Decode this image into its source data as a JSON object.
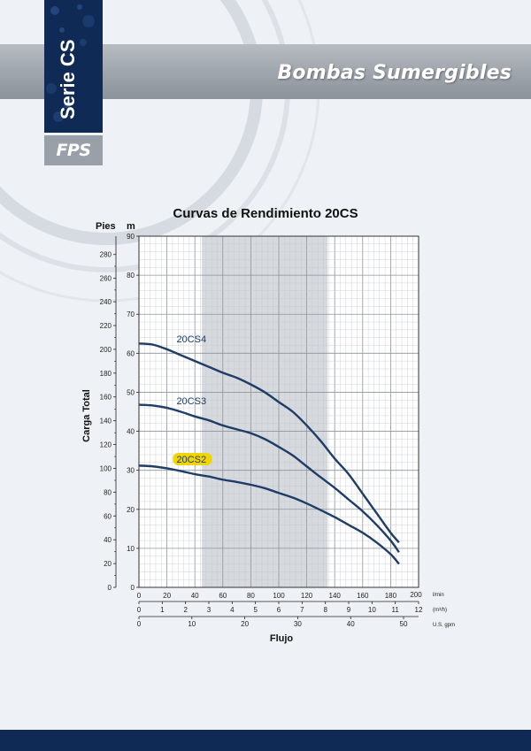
{
  "header": {
    "title": "Bombas Sumergibles",
    "series_label": "Serie CS",
    "logo_text": "FPS"
  },
  "colors": {
    "navy": "#0e2a55",
    "band_grey": "#9ea4ab",
    "curve": "#1f3d66",
    "highlight": "#f2d500",
    "shade": "#d6d9de"
  },
  "chart_data": {
    "type": "line",
    "title": "Curvas de Rendimiento 20CS",
    "xlabel": "Flujo",
    "ylabel": "Carga Total",
    "xlim": [
      0,
      200
    ],
    "ylim": [
      0,
      90
    ],
    "shaded_range": [
      45,
      135
    ],
    "grid": true,
    "axes": {
      "left_unit": "Pies",
      "left_ticks": [
        "0",
        "20",
        "40",
        "60",
        "80",
        "100",
        "120",
        "140",
        "160",
        "180",
        "200",
        "220",
        "240",
        "260",
        "280"
      ],
      "left_ticks_m": [
        0,
        6.1,
        12.2,
        18.3,
        24.4,
        30.5,
        36.6,
        42.7,
        48.8,
        54.9,
        61,
        67.1,
        73.2,
        79.2,
        85.3
      ],
      "m_unit": "m",
      "m_ticks": [
        "0",
        "10",
        "20",
        "30",
        "40",
        "50",
        "60",
        "70",
        "80",
        "90"
      ],
      "bottom1_unit": "l/min",
      "bottom1_ticks": [
        "0",
        "20",
        "40",
        "60",
        "80",
        "100",
        "120",
        "140",
        "160",
        "180",
        "200"
      ],
      "bottom2_unit": "(m³/h)",
      "bottom2_ticks": [
        "0",
        "1",
        "2",
        "3",
        "4",
        "5",
        "6",
        "7",
        "8",
        "9",
        "10",
        "11",
        "12"
      ],
      "bottom3_unit": "U.S. gpm",
      "bottom3_ticks": [
        "0",
        "10",
        "20",
        "30",
        "40",
        "50"
      ],
      "bottom3_ticks_lmin": [
        0,
        37.85,
        75.7,
        113.55,
        151.4,
        189.25
      ]
    },
    "series": [
      {
        "name": "20CS4",
        "label_x": 18,
        "label_y": 63,
        "highlight": false,
        "x": [
          0,
          10,
          20,
          30,
          40,
          50,
          60,
          70,
          80,
          90,
          100,
          110,
          120,
          130,
          140,
          150,
          160,
          170,
          180,
          186
        ],
        "y": [
          62.5,
          62.2,
          61,
          59.5,
          58,
          56.5,
          55,
          53.7,
          52,
          50,
          47.5,
          45,
          41.5,
          37.5,
          33,
          29,
          24,
          19,
          14,
          11.5
        ]
      },
      {
        "name": "20CS3",
        "label_x": 18,
        "label_y": 47.2,
        "highlight": false,
        "x": [
          0,
          10,
          20,
          30,
          40,
          50,
          60,
          70,
          80,
          90,
          100,
          110,
          120,
          130,
          140,
          150,
          160,
          170,
          180,
          186
        ],
        "y": [
          46.8,
          46.6,
          46,
          45,
          43.8,
          42.8,
          41.5,
          40.5,
          39.5,
          38,
          36,
          33.8,
          31,
          28.2,
          25.5,
          22.5,
          19.5,
          16,
          12,
          9
        ]
      },
      {
        "name": "20CS2",
        "label_x": 18,
        "label_y": 32.2,
        "highlight": true,
        "x": [
          0,
          10,
          20,
          30,
          40,
          50,
          60,
          70,
          80,
          90,
          100,
          110,
          120,
          130,
          140,
          150,
          160,
          170,
          180,
          186
        ],
        "y": [
          31.2,
          31,
          30.5,
          29.8,
          29,
          28.4,
          27.6,
          27,
          26.3,
          25.4,
          24.2,
          23,
          21.5,
          19.8,
          18,
          16,
          14,
          11.5,
          8.5,
          6
        ]
      }
    ]
  }
}
